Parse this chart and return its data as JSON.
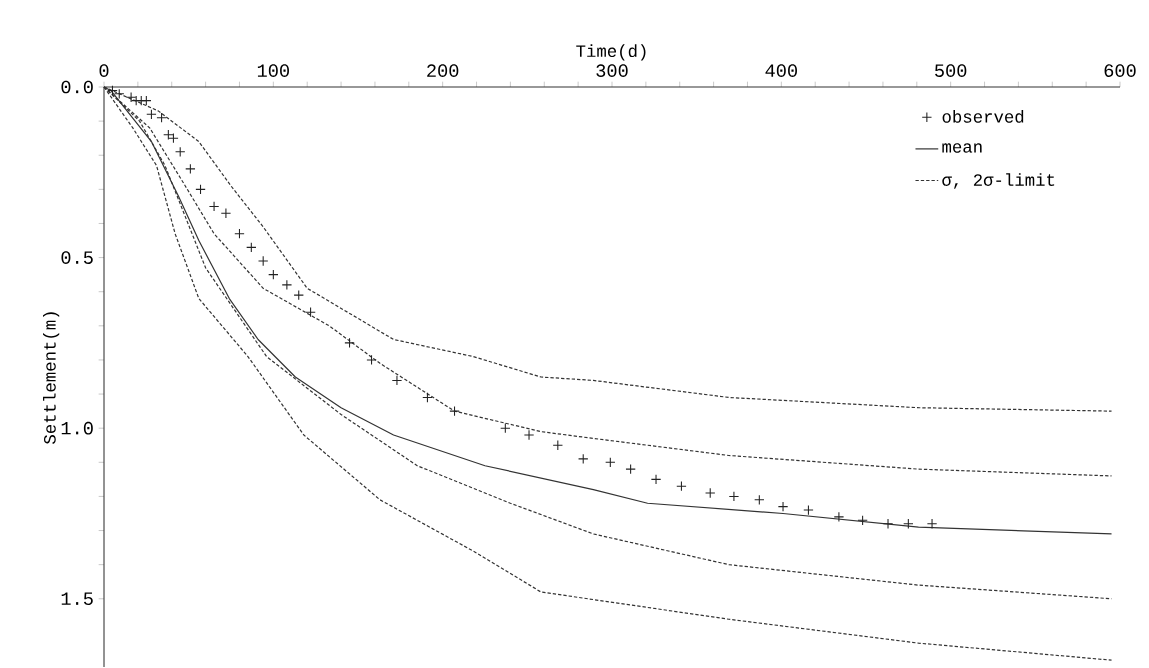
{
  "chart_data": {
    "type": "line",
    "xlabel": "Time(d)",
    "ylabel": "Settlement(m)",
    "xlim": [
      0,
      600
    ],
    "ylim": [
      1.7,
      0
    ],
    "xticks": [
      0,
      {
        "value": 20,
        "label": null
      },
      {
        "value": 40,
        "label": null
      },
      {
        "value": 60,
        "label": null
      },
      {
        "value": 80,
        "label": null
      },
      100,
      {
        "value": 120,
        "label": null
      },
      {
        "value": 140,
        "label": null
      },
      {
        "value": 160,
        "label": null
      },
      {
        "value": 180,
        "label": null
      },
      200,
      {
        "value": 220,
        "label": null
      },
      {
        "value": 240,
        "label": null
      },
      {
        "value": 260,
        "label": null
      },
      {
        "value": 280,
        "label": null
      },
      300,
      {
        "value": 320,
        "label": null
      },
      {
        "value": 340,
        "label": null
      },
      {
        "value": 360,
        "label": null
      },
      {
        "value": 380,
        "label": null
      },
      400,
      {
        "value": 420,
        "label": null
      },
      {
        "value": 440,
        "label": null
      },
      {
        "value": 460,
        "label": null
      },
      {
        "value": 480,
        "label": null
      },
      500,
      {
        "value": 520,
        "label": null
      },
      {
        "value": 540,
        "label": null
      },
      {
        "value": 560,
        "label": null
      },
      {
        "value": 580,
        "label": null
      },
      600
    ],
    "yticks": [
      {
        "value": 0,
        "label": "0.0"
      },
      {
        "value": 0.1,
        "label": null
      },
      {
        "value": 0.2,
        "label": null
      },
      {
        "value": 0.3,
        "label": null
      },
      {
        "value": 0.4,
        "label": null
      },
      {
        "value": 0.5,
        "label": "0.5"
      },
      {
        "value": 0.6,
        "label": null
      },
      {
        "value": 0.7,
        "label": null
      },
      {
        "value": 0.8,
        "label": null
      },
      {
        "value": 0.9,
        "label": null
      },
      {
        "value": 1.0,
        "label": "1.0"
      },
      {
        "value": 1.1,
        "label": null
      },
      {
        "value": 1.2,
        "label": null
      },
      {
        "value": 1.3,
        "label": null
      },
      {
        "value": 1.4,
        "label": null
      },
      {
        "value": 1.5,
        "label": "1.5"
      }
    ],
    "legend": "top right",
    "series": [
      {
        "name": "observed",
        "type": "scatter",
        "marker": "cross",
        "color": "#222222",
        "x": [
          5,
          9,
          16,
          19,
          22,
          25,
          28,
          34,
          38,
          41,
          45,
          51,
          57,
          65,
          72,
          80,
          87,
          94,
          100,
          108,
          115,
          122,
          145,
          158,
          173,
          191,
          207,
          237,
          251,
          268,
          283,
          299,
          311,
          326,
          341,
          358,
          372,
          387,
          401,
          416,
          434,
          448,
          463,
          475,
          489
        ],
        "values": [
          0.01,
          0.02,
          0.03,
          0.04,
          0.04,
          0.04,
          0.08,
          0.09,
          0.14,
          0.15,
          0.19,
          0.24,
          0.3,
          0.35,
          0.37,
          0.43,
          0.47,
          0.51,
          0.55,
          0.58,
          0.61,
          0.66,
          0.75,
          0.8,
          0.86,
          0.91,
          0.95,
          1.0,
          1.02,
          1.05,
          1.09,
          1.1,
          1.12,
          1.15,
          1.17,
          1.19,
          1.2,
          1.21,
          1.23,
          1.24,
          1.26,
          1.27,
          1.28,
          1.28,
          1.28
        ]
      },
      {
        "name": "mean",
        "line_style": "solid",
        "color": "#333333",
        "x": [
          0,
          4,
          28,
          44,
          56,
          74,
          91,
          113,
          140,
          171,
          225,
          289,
          321,
          401,
          481,
          595
        ],
        "values": [
          0,
          0.01,
          0.16,
          0.32,
          0.45,
          0.62,
          0.74,
          0.85,
          0.94,
          1.02,
          1.11,
          1.18,
          1.22,
          1.25,
          1.29,
          1.31
        ]
      },
      {
        "name": "σ, 2σ-limit",
        "line_style": "dashed",
        "color": "#333333",
        "x": [
          0,
          32,
          56,
          75,
          94,
          120,
          171,
          218,
          258,
          289,
          369,
          481,
          595
        ],
        "values": [
          0,
          0.07,
          0.16,
          0.29,
          0.41,
          0.59,
          0.74,
          0.79,
          0.85,
          0.86,
          0.91,
          0.94,
          0.95
        ]
      },
      {
        "line_style": "dashed",
        "color": "#333333",
        "x": [
          0,
          27,
          48,
          65,
          94,
          133,
          163,
          207,
          258,
          289,
          369,
          481,
          595
        ],
        "values": [
          0,
          0.12,
          0.29,
          0.43,
          0.59,
          0.7,
          0.81,
          0.95,
          1.01,
          1.03,
          1.08,
          1.12,
          1.14
        ]
      },
      {
        "line_style": "dashed",
        "color": "#333333",
        "x": [
          0,
          21,
          36,
          48,
          60,
          96,
          140,
          185,
          240,
          289,
          369,
          481,
          595
        ],
        "values": [
          0,
          0.1,
          0.23,
          0.38,
          0.53,
          0.79,
          0.96,
          1.11,
          1.22,
          1.31,
          1.4,
          1.46,
          1.5
        ]
      },
      {
        "line_style": "dashed",
        "color": "#333333",
        "x": [
          0,
          17,
          31,
          42,
          56,
          85,
          118,
          163,
          218,
          258,
          369,
          481,
          595
        ],
        "values": [
          0,
          0.12,
          0.23,
          0.43,
          0.62,
          0.79,
          1.02,
          1.21,
          1.36,
          1.48,
          1.56,
          1.63,
          1.68
        ]
      }
    ]
  }
}
